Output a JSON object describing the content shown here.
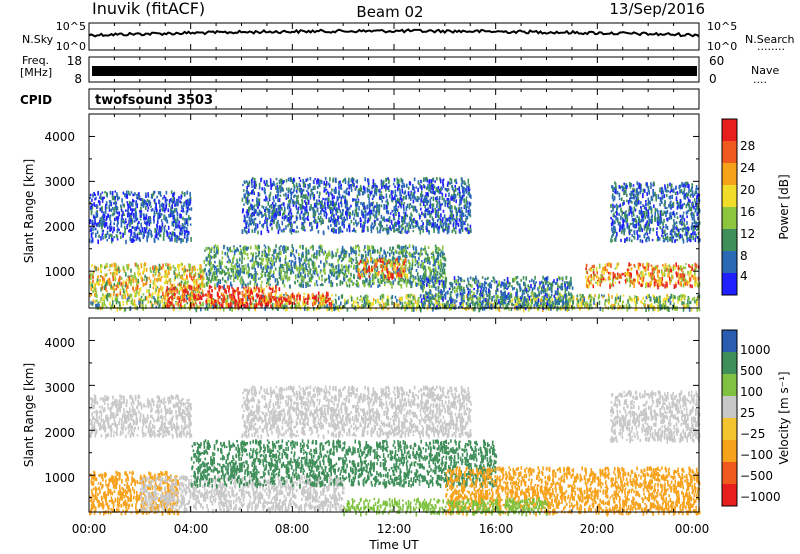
{
  "header": {
    "station": "Inuvik (fitACF)",
    "beam": "Beam 02",
    "date": "13/Sep/2016"
  },
  "nsky_panel": {
    "left_label": "N.Sky",
    "left_ticks": [
      "10^5",
      "10^0"
    ],
    "right_ticks": [
      "10^5",
      "10^0"
    ],
    "right_label": "N.Search",
    "right_legend_marker": "........"
  },
  "freq_panel": {
    "left_label_line1": "Freq.",
    "left_label_line2": "[MHz]",
    "left_ticks": [
      "18",
      "8"
    ],
    "right_ticks": [
      "60",
      "0"
    ],
    "right_label": "Nave",
    "right_legend_marker": "...."
  },
  "cpid_panel": {
    "label": "CPID",
    "program": "twofsound 3503"
  },
  "x_axis": {
    "ticks": [
      "00:00",
      "04:00",
      "08:00",
      "12:00",
      "16:00",
      "20:00",
      "00:00"
    ],
    "label": "Time UT"
  },
  "power_panel": {
    "ylabel": "Slant Range [km]",
    "yticks": [
      "1000",
      "2000",
      "3000",
      "4000"
    ],
    "colorbar_label": "Power [dB]",
    "colorbar_ticks": [
      "4",
      "8",
      "12",
      "16",
      "20",
      "24",
      "28"
    ]
  },
  "velocity_panel": {
    "ylabel": "Slant Range [km]",
    "yticks": [
      "1000",
      "2000",
      "3000",
      "4000"
    ],
    "colorbar_label": "Velocity [m s⁻¹]",
    "colorbar_ticks": [
      "1000",
      "500",
      "100",
      "25",
      "−25",
      "−100",
      "−500",
      "−1000"
    ]
  },
  "chart_data": [
    {
      "type": "heatmap",
      "name": "Power",
      "x_range_hours_ut": [
        0,
        24
      ],
      "y_range_km": [
        180,
        4500
      ],
      "colorbar_range_db": [
        0,
        32
      ],
      "colorbar_colors": [
        "#1f1fff",
        "#2a6ab4",
        "#3f8f5a",
        "#8cc63f",
        "#f2dc2a",
        "#f7a21b",
        "#f15a1e",
        "#e81e1e"
      ],
      "blobs": [
        {
          "t0": 0,
          "t1": 24,
          "r0": 180,
          "r1": 500,
          "value": 14
        },
        {
          "t0": 0,
          "t1": 4.5,
          "r0": 500,
          "r1": 1200,
          "value": 18
        },
        {
          "t0": 3,
          "t1": 7.5,
          "r0": 250,
          "r1": 700,
          "value": 30
        },
        {
          "t0": 7.5,
          "t1": 9.5,
          "r0": 300,
          "r1": 550,
          "value": 28
        },
        {
          "t0": 4.5,
          "t1": 14,
          "r0": 700,
          "r1": 1600,
          "value": 10
        },
        {
          "t0": 10.5,
          "t1": 12.5,
          "r0": 900,
          "r1": 1300,
          "value": 24
        },
        {
          "t0": 0,
          "t1": 4,
          "r0": 1700,
          "r1": 2800,
          "value": 5
        },
        {
          "t0": 6,
          "t1": 15,
          "r0": 1900,
          "r1": 3100,
          "value": 6
        },
        {
          "t0": 20.5,
          "t1": 24,
          "r0": 1700,
          "r1": 3000,
          "value": 6
        },
        {
          "t0": 19.5,
          "t1": 24,
          "r0": 700,
          "r1": 1200,
          "value": 22
        },
        {
          "t0": 13,
          "t1": 19,
          "r0": 200,
          "r1": 900,
          "value": 8
        }
      ]
    },
    {
      "type": "heatmap",
      "name": "Velocity",
      "x_range_hours_ut": [
        0,
        24
      ],
      "y_range_km": [
        180,
        4500
      ],
      "colorbar_levels_m_s": [
        -1000,
        -500,
        -100,
        -25,
        25,
        100,
        500,
        1000
      ],
      "colorbar_colors": [
        "#e81e1e",
        "#f15a1e",
        "#f7a21b",
        "#f4c430",
        "#c8c8c8",
        "#7fc241",
        "#3f8f5a",
        "#2a5cb0"
      ],
      "blobs": [
        {
          "t0": 0,
          "t1": 3.5,
          "r0": 180,
          "r1": 1100,
          "value": -200
        },
        {
          "t0": 2,
          "t1": 10,
          "r0": 250,
          "r1": 1000,
          "value": 0
        },
        {
          "t0": 4,
          "t1": 16,
          "r0": 800,
          "r1": 1800,
          "value": 300
        },
        {
          "t0": 0,
          "t1": 4,
          "r0": 1900,
          "r1": 2800,
          "value": 0
        },
        {
          "t0": 6,
          "t1": 15,
          "r0": 1900,
          "r1": 3000,
          "value": 0
        },
        {
          "t0": 20.5,
          "t1": 24,
          "r0": 1800,
          "r1": 2900,
          "value": 0
        },
        {
          "t0": 14,
          "t1": 24,
          "r0": 180,
          "r1": 1200,
          "value": -200
        },
        {
          "t0": 10,
          "t1": 18,
          "r0": 180,
          "r1": 500,
          "value": 40
        }
      ]
    }
  ]
}
